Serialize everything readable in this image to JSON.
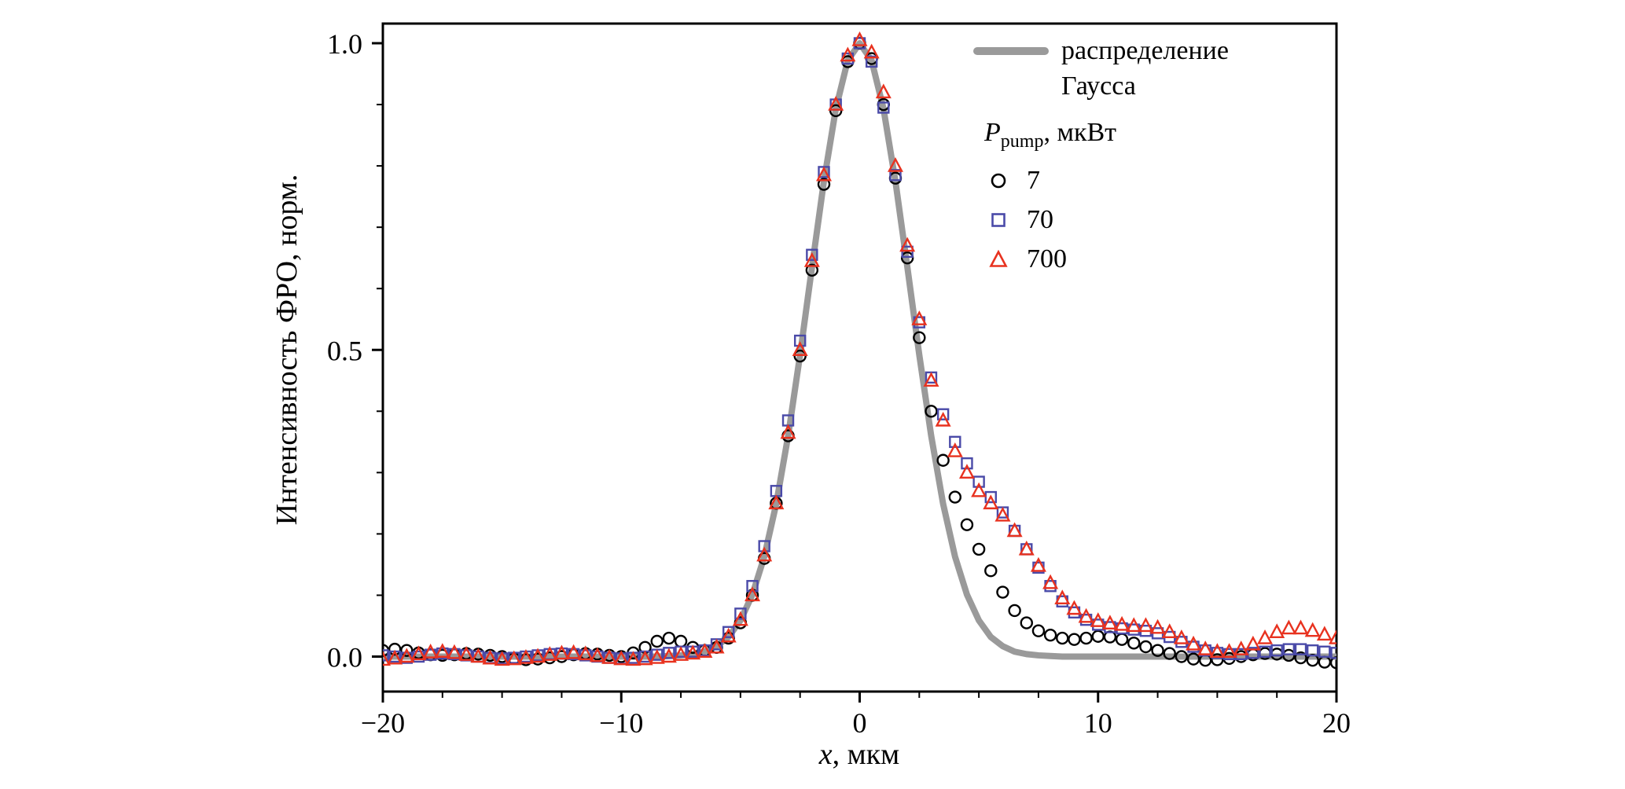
{
  "figure": {
    "background": "#ffffff"
  },
  "chart_data": {
    "type": "scatter",
    "title": "",
    "xlabel_var": "x",
    "xlabel_rest": ", мкм",
    "ylabel": "Интенсивность ФРО, норм.",
    "xlim": [
      -20,
      20
    ],
    "ylim": [
      -0.058,
      1.09
    ],
    "xticks": [
      -20,
      -10,
      0,
      10,
      20
    ],
    "xtick_labels": [
      "−20",
      "−10",
      "0",
      "10",
      "20"
    ],
    "yticks": [
      0,
      0.5,
      1
    ],
    "ytick_labels": [
      "0.0",
      "0.5",
      "1.0"
    ],
    "x_minor_step": 2.5,
    "y_minor_step": 0.1,
    "grid": false,
    "legend_position": "top-right-inside",
    "x": [
      -20,
      -19.5,
      -19,
      -18.5,
      -18,
      -17.5,
      -17,
      -16.5,
      -16,
      -15.5,
      -15,
      -14.5,
      -14,
      -13.5,
      -13,
      -12.5,
      -12,
      -11.5,
      -11,
      -10.5,
      -10,
      -9.5,
      -9,
      -8.5,
      -8,
      -7.5,
      -7,
      -6.5,
      -6,
      -5.5,
      -5,
      -4.5,
      -4,
      -3.5,
      -3,
      -2.5,
      -2,
      -1.5,
      -1,
      -0.5,
      0,
      0.5,
      1,
      1.5,
      2,
      2.5,
      3,
      3.5,
      4,
      4.5,
      5,
      5.5,
      6,
      6.5,
      7,
      7.5,
      8,
      8.5,
      9,
      9.5,
      10,
      10.5,
      11,
      11.5,
      12,
      12.5,
      13,
      13.5,
      14,
      14.5,
      15,
      15.5,
      16,
      16.5,
      17,
      17.5,
      18,
      18.5,
      19,
      19.5,
      20
    ],
    "gauss": {
      "name": "распределение Гаусса",
      "legend_lines": [
        "распределение",
        "Гаусса"
      ],
      "color": "#9a9a9a",
      "line_width": 8,
      "values": [
        0,
        0,
        0,
        0,
        0,
        0,
        0,
        0,
        0,
        0,
        0,
        0,
        0,
        0,
        0,
        0,
        0,
        0,
        0,
        0,
        0,
        0,
        0,
        0,
        0.001,
        0.002,
        0.004,
        0.008,
        0.017,
        0.032,
        0.059,
        0.101,
        0.163,
        0.249,
        0.36,
        0.492,
        0.635,
        0.775,
        0.893,
        0.972,
        1,
        0.972,
        0.893,
        0.775,
        0.635,
        0.492,
        0.36,
        0.249,
        0.163,
        0.101,
        0.059,
        0.032,
        0.017,
        0.008,
        0.004,
        0.002,
        0.001,
        0,
        0,
        0,
        0,
        0,
        0,
        0,
        0,
        0,
        0,
        0,
        0,
        0,
        0,
        0,
        0,
        0,
        0,
        0,
        0,
        0,
        0,
        0,
        0
      ]
    },
    "legend_pump": {
      "p": "P",
      "sub": "pump",
      "rest": ", мкВт"
    },
    "series": [
      {
        "name": "7",
        "marker": "circle",
        "color": "#000000",
        "values": [
          0.01,
          0.012,
          0.01,
          0.006,
          0.003,
          0.002,
          0.003,
          0.005,
          0.004,
          0.002,
          0,
          -0.003,
          -0.005,
          -0.004,
          -0.002,
          0,
          0.003,
          0.005,
          0.004,
          0.002,
          0,
          0.006,
          0.015,
          0.025,
          0.03,
          0.025,
          0.015,
          0.01,
          0.015,
          0.03,
          0.055,
          0.1,
          0.16,
          0.25,
          0.36,
          0.49,
          0.63,
          0.77,
          0.89,
          0.97,
          1,
          0.975,
          0.9,
          0.78,
          0.65,
          0.52,
          0.4,
          0.32,
          0.26,
          0.215,
          0.175,
          0.14,
          0.105,
          0.075,
          0.055,
          0.042,
          0.035,
          0.03,
          0.028,
          0.03,
          0.033,
          0.032,
          0.028,
          0.022,
          0.016,
          0.01,
          0.005,
          0,
          -0.004,
          -0.006,
          -0.005,
          -0.003,
          0,
          0.003,
          0.005,
          0.004,
          0.002,
          -0.002,
          -0.006,
          -0.009,
          -0.01
        ]
      },
      {
        "name": "70",
        "marker": "square",
        "color": "#4a4aa8",
        "values": [
          0.002,
          0,
          -0.002,
          0,
          0.003,
          0.005,
          0.004,
          0.002,
          0,
          -0.002,
          -0.003,
          -0.002,
          0,
          0.002,
          0.004,
          0.005,
          0.004,
          0.002,
          0,
          -0.002,
          -0.003,
          -0.002,
          0,
          0.003,
          0.006,
          0.008,
          0.008,
          0.01,
          0.02,
          0.04,
          0.07,
          0.115,
          0.18,
          0.27,
          0.385,
          0.515,
          0.655,
          0.79,
          0.9,
          0.975,
          1,
          0.97,
          0.895,
          0.785,
          0.66,
          0.545,
          0.455,
          0.395,
          0.35,
          0.315,
          0.285,
          0.26,
          0.235,
          0.205,
          0.175,
          0.145,
          0.115,
          0.09,
          0.072,
          0.06,
          0.052,
          0.048,
          0.046,
          0.044,
          0.042,
          0.038,
          0.032,
          0.024,
          0.016,
          0.01,
          0.006,
          0.004,
          0.004,
          0.006,
          0.008,
          0.01,
          0.012,
          0.012,
          0.01,
          0.008,
          0.006
        ]
      },
      {
        "name": "700",
        "marker": "triangle",
        "color": "#e8321f",
        "values": [
          -0.005,
          -0.003,
          0,
          0.004,
          0.007,
          0.008,
          0.006,
          0.003,
          0,
          -0.003,
          -0.005,
          -0.004,
          -0.002,
          0,
          0.003,
          0.005,
          0.006,
          0.004,
          0.001,
          -0.002,
          -0.004,
          -0.005,
          -0.004,
          -0.002,
          0,
          0.003,
          0.005,
          0.008,
          0.015,
          0.033,
          0.06,
          0.1,
          0.165,
          0.25,
          0.365,
          0.5,
          0.645,
          0.785,
          0.9,
          0.98,
          1.005,
          0.985,
          0.92,
          0.8,
          0.67,
          0.55,
          0.45,
          0.385,
          0.335,
          0.3,
          0.27,
          0.25,
          0.23,
          0.205,
          0.175,
          0.148,
          0.12,
          0.095,
          0.078,
          0.065,
          0.058,
          0.054,
          0.052,
          0.05,
          0.05,
          0.047,
          0.04,
          0.03,
          0.02,
          0.012,
          0.008,
          0.008,
          0.012,
          0.02,
          0.03,
          0.04,
          0.046,
          0.046,
          0.042,
          0.036,
          0.03
        ]
      }
    ]
  }
}
